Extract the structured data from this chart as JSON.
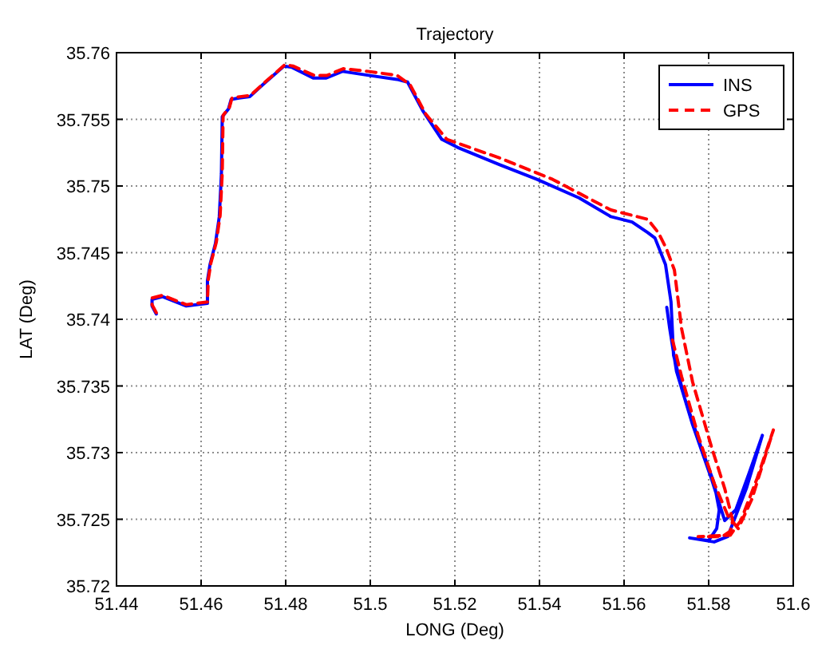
{
  "chart_data": {
    "type": "line",
    "title": "Trajectory",
    "xlabel": "LONG (Deg)",
    "ylabel": "LAT (Deg)",
    "xlim": [
      51.44,
      51.6
    ],
    "xticks": [
      51.44,
      51.46,
      51.48,
      51.5,
      51.52,
      51.54,
      51.56,
      51.58,
      51.6
    ],
    "ylim": [
      35.72,
      35.76
    ],
    "yticks": [
      35.72,
      35.725,
      35.73,
      35.735,
      35.74,
      35.745,
      35.75,
      35.755,
      35.76
    ],
    "grid": true,
    "legend": "top right",
    "series": [
      {
        "name": "INS",
        "color": "#0000ff",
        "line_style": "solid",
        "x": [
          51.4494,
          51.4484,
          51.4484,
          51.4509,
          51.4565,
          51.4615,
          51.4615,
          51.4621,
          51.4634,
          51.4643,
          51.4648,
          51.465,
          51.4665,
          51.4671,
          51.469,
          51.4715,
          51.4746,
          51.4796,
          51.4815,
          51.4865,
          51.4896,
          51.4934,
          51.4996,
          51.5063,
          51.5088,
          51.5125,
          51.5169,
          51.5206,
          51.5306,
          51.5394,
          51.5494,
          51.5569,
          51.5619,
          51.5656,
          51.5673,
          51.5698,
          51.5711,
          51.5717,
          51.5743,
          51.5781,
          51.5813,
          51.5825,
          51.5819,
          51.58,
          51.5755,
          51.5813,
          51.5845,
          51.5889,
          51.5927,
          51.5896,
          51.5864,
          51.5838,
          51.5806,
          51.5762,
          51.5724,
          51.5708,
          51.5701
        ],
        "values": [
          35.7404,
          35.741,
          35.7415,
          35.7417,
          35.741,
          35.7412,
          35.7429,
          35.7441,
          35.7457,
          35.7477,
          35.7509,
          35.7552,
          35.7558,
          35.7565,
          35.7566,
          35.7567,
          35.7576,
          35.759,
          35.7589,
          35.7581,
          35.7581,
          35.7586,
          35.7583,
          35.758,
          35.7578,
          35.7556,
          35.7535,
          35.7529,
          35.7516,
          35.7505,
          35.7491,
          35.7477,
          35.7473,
          35.7465,
          35.7461,
          35.7441,
          35.7413,
          35.7373,
          35.7341,
          35.7305,
          35.7277,
          35.7257,
          35.7243,
          35.7234,
          35.7236,
          35.7233,
          35.7237,
          35.7273,
          35.7313,
          35.7285,
          35.7257,
          35.7249,
          35.7281,
          35.7321,
          35.7361,
          35.7393,
          35.7409
        ]
      },
      {
        "name": "GPS",
        "color": "#ff0000",
        "line_style": "dashed",
        "x": [
          51.4494,
          51.4484,
          51.4484,
          51.4509,
          51.4565,
          51.4615,
          51.4617,
          51.4623,
          51.4636,
          51.4645,
          51.465,
          51.4652,
          51.4667,
          51.4673,
          51.4692,
          51.4717,
          51.4748,
          51.4798,
          51.4817,
          51.4867,
          51.4898,
          51.4936,
          51.4994,
          51.5063,
          51.5094,
          51.5131,
          51.5181,
          51.5306,
          51.5431,
          51.5569,
          51.5656,
          51.5681,
          51.57,
          51.5719,
          51.5736,
          51.5762,
          51.5806,
          51.5838,
          51.5857,
          51.5851,
          51.5832,
          51.5775,
          51.5851,
          51.5876,
          51.5915,
          51.5953,
          51.5902,
          51.587,
          51.5845,
          51.5813,
          51.5775,
          51.5736,
          51.5711
        ],
        "values": [
          35.7405,
          35.7411,
          35.7416,
          35.7418,
          35.7411,
          35.7413,
          35.743,
          35.7442,
          35.7458,
          35.7478,
          35.751,
          35.7553,
          35.7559,
          35.7566,
          35.7567,
          35.7568,
          35.7577,
          35.7591,
          35.759,
          35.7583,
          35.7583,
          35.7588,
          35.7586,
          35.7583,
          35.7576,
          35.7554,
          35.7535,
          35.7521,
          35.7505,
          35.7482,
          35.7475,
          35.7465,
          35.7453,
          35.7437,
          35.7393,
          35.7353,
          35.7305,
          35.7273,
          35.7249,
          35.7241,
          35.7237,
          35.7237,
          35.7238,
          35.7249,
          35.7281,
          35.7317,
          35.7265,
          35.7243,
          35.7253,
          35.7277,
          35.7313,
          35.7357,
          35.7389
        ]
      }
    ]
  }
}
